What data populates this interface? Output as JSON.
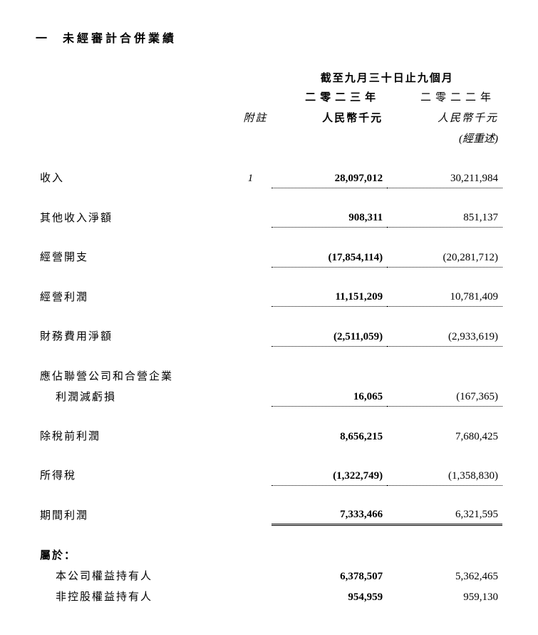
{
  "section": {
    "number": "一",
    "title": "未經審計合併業績"
  },
  "header": {
    "period": "截至九月三十日止九個月",
    "note_label": "附註",
    "years": {
      "current": "二零二三年",
      "prior": "二零二二年"
    },
    "units": {
      "current": "人民幣千元",
      "prior": "人民幣千元"
    },
    "restated": "(經重述)"
  },
  "rows": {
    "revenue": {
      "label": "收入",
      "note": "1",
      "current": "28,097,012",
      "prior": "30,211,984"
    },
    "other_income": {
      "label": "其他收入淨額",
      "note": "",
      "current": "908,311",
      "prior": "851,137"
    },
    "op_expenses": {
      "label": "經營開支",
      "note": "",
      "current": "(17,854,114)",
      "prior": "(20,281,712)"
    },
    "op_profit": {
      "label": "經營利潤",
      "note": "",
      "current": "11,151,209",
      "prior": "10,781,409"
    },
    "finance_cost": {
      "label": "財務費用淨額",
      "note": "",
      "current": "(2,511,059)",
      "prior": "(2,933,619)"
    },
    "share_assoc_1": {
      "label": "應佔聯營公司和合營企業"
    },
    "share_assoc_2": {
      "label": "利潤減虧損",
      "note": "",
      "current": "16,065",
      "prior": "(167,365)"
    },
    "pbt": {
      "label": "除稅前利潤",
      "note": "",
      "current": "8,656,215",
      "prior": "7,680,425"
    },
    "tax": {
      "label": "所得稅",
      "note": "",
      "current": "(1,322,749)",
      "prior": "(1,358,830)"
    },
    "period_profit": {
      "label": "期間利潤",
      "note": "",
      "current": "7,333,466",
      "prior": "6,321,595"
    },
    "attrib": {
      "label": "屬於："
    },
    "attrib_owners": {
      "label": "本公司權益持有人",
      "note": "",
      "current": "6,378,507",
      "prior": "5,362,465"
    },
    "attrib_nci": {
      "label": "非控股權益持有人",
      "note": "",
      "current": "954,959",
      "prior": "959,130"
    }
  }
}
